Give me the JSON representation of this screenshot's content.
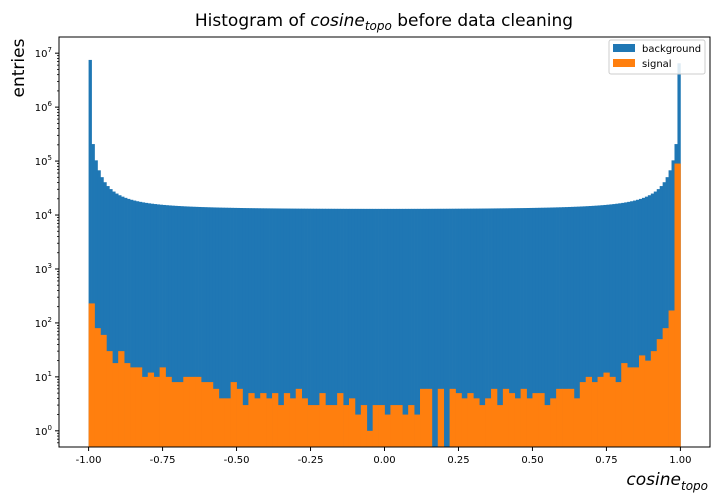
{
  "chart_data": {
    "type": "histogram",
    "title": {
      "prefix": "Histogram of ",
      "var": "cosine",
      "sub": "topo",
      "suffix": " before data cleaning"
    },
    "xlabel": {
      "var": "cosine",
      "sub": "topo"
    },
    "ylabel": "entries",
    "xlim": [
      -1.1,
      1.1
    ],
    "ylim_log10": [
      -0.3,
      7.3
    ],
    "yscale": "log",
    "x_ticks": [
      "-1.00",
      "-0.75",
      "-0.50",
      "-0.25",
      "0.00",
      "0.25",
      "0.50",
      "0.75",
      "1.00"
    ],
    "x_tick_values": [
      -1.0,
      -0.75,
      -0.5,
      -0.25,
      0.0,
      0.25,
      0.5,
      0.75,
      1.0
    ],
    "y_tick_exponents": [
      0,
      1,
      2,
      3,
      4,
      5,
      6,
      7
    ],
    "legend": {
      "placement": "top-right",
      "entries": [
        {
          "label": "background",
          "color": "#1f77b4"
        },
        {
          "label": "signal",
          "color": "#ff7f0e"
        }
      ]
    },
    "background": {
      "name": "background",
      "color": "#1f77b4",
      "bins": 200,
      "range": [
        -1.0,
        1.0
      ],
      "shape": {
        "center_value": 12000,
        "edge_value": 4000000
      },
      "edge_values": {
        "first": 7500000,
        "last": 6500000
      }
    },
    "signal": {
      "name": "signal",
      "color": "#ff7f0e",
      "bins": 100,
      "range": [
        -1.0,
        1.0
      ],
      "values": [
        230,
        80,
        60,
        30,
        18,
        30,
        18,
        15,
        15,
        10,
        12,
        10,
        15,
        10,
        8,
        8,
        10,
        10,
        10,
        8,
        8,
        6,
        4,
        4,
        8,
        6,
        3,
        5,
        4,
        5,
        4,
        5,
        3,
        5,
        4,
        6,
        4,
        3,
        3,
        5,
        3,
        3,
        5,
        3,
        4,
        2,
        3,
        1,
        3,
        3,
        2,
        3,
        3,
        2,
        3,
        2,
        6,
        6,
        0.5,
        6,
        0,
        6,
        5,
        4,
        5,
        4,
        3,
        4,
        6,
        3,
        6,
        5,
        4,
        6,
        4,
        5,
        5,
        3,
        4,
        6,
        6,
        6,
        4,
        8,
        10,
        8,
        10,
        12,
        10,
        8,
        18,
        15,
        15,
        25,
        20,
        30,
        50,
        80,
        170,
        90000
      ]
    }
  }
}
